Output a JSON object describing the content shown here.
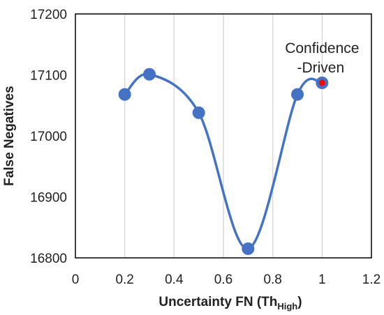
{
  "chart_data": {
    "type": "line",
    "title": "",
    "xlabel": "Uncertainty FN (Th",
    "xlabel_sub": "High",
    "xlabel_close": ")",
    "ylabel": "False Negatives",
    "xlim": [
      0,
      1.2
    ],
    "ylim": [
      16800,
      17200
    ],
    "x_ticks": [
      "0",
      "0.2",
      "0.4",
      "0.6",
      "0.8",
      "1",
      "1.2"
    ],
    "y_ticks": [
      "16800",
      "16900",
      "17000",
      "17100",
      "17200"
    ],
    "grid": "vertical",
    "smooth": true,
    "series": [
      {
        "x": [
          0.2,
          0.3,
          0.5,
          0.7,
          0.9,
          1.0
        ],
        "y": [
          17068,
          17101,
          17038,
          16815,
          17068,
          17087
        ]
      }
    ],
    "highlight_point": {
      "x": 1.0,
      "y": 17087
    },
    "annotation": {
      "lines": [
        "Confidence",
        "-Driven"
      ],
      "x": 1.0,
      "y": 17087
    },
    "colors": {
      "line": "#4472C4",
      "marker": "#4472C4",
      "highlight": "#FF0000",
      "grid": "#D9D9D9"
    }
  }
}
